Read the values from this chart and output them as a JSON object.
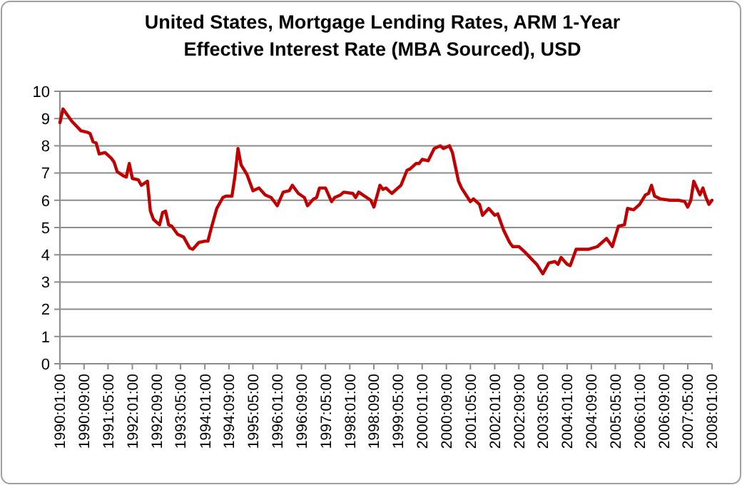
{
  "chart_data": {
    "type": "line",
    "title": "United States, Mortgage Lending Rates, ARM 1-Year Effective Interest Rate (MBA Sourced), USD",
    "x": [
      "1990-01",
      "1990-02",
      "1990-05",
      "1990-08",
      "1990-10",
      "1990-11",
      "1990-12",
      "1991-01",
      "1991-02",
      "1991-04",
      "1991-06",
      "1991-07",
      "1991-08",
      "1991-10",
      "1991-11",
      "1991-12",
      "1992-01",
      "1992-03",
      "1992-04",
      "1992-06",
      "1992-07",
      "1992-08",
      "1992-10",
      "1992-11",
      "1992-12",
      "1993-01",
      "1993-02",
      "1993-04",
      "1993-06",
      "1993-08",
      "1993-09",
      "1993-11",
      "1994-01",
      "1994-02",
      "1994-03",
      "1994-05",
      "1994-07",
      "1994-08",
      "1994-10",
      "1994-11",
      "1994-12",
      "1995-01",
      "1995-03",
      "1995-05",
      "1995-07",
      "1995-09",
      "1995-11",
      "1996-01",
      "1996-03",
      "1996-05",
      "1996-06",
      "1996-08",
      "1996-10",
      "1996-11",
      "1997-01",
      "1997-02",
      "1997-03",
      "1997-05",
      "1997-07",
      "1997-08",
      "1997-10",
      "1997-11",
      "1998-02",
      "1998-03",
      "1998-04",
      "1998-06",
      "1998-08",
      "1998-09",
      "1998-11",
      "1998-12",
      "1999-01",
      "1999-03",
      "1999-05",
      "1999-06",
      "1999-08",
      "1999-09",
      "1999-11",
      "1999-12",
      "2000-01",
      "2000-03",
      "2000-05",
      "2000-07",
      "2000-08",
      "2000-10",
      "2000-11",
      "2001-01",
      "2001-02",
      "2001-05",
      "2001-06",
      "2001-08",
      "2001-09",
      "2001-11",
      "2002-01",
      "2002-02",
      "2002-04",
      "2002-06",
      "2002-07",
      "2002-09",
      "2002-11",
      "2003-02",
      "2003-03",
      "2003-05",
      "2003-07",
      "2003-09",
      "2003-10",
      "2003-11",
      "2004-01",
      "2004-02",
      "2004-04",
      "2004-08",
      "2004-11",
      "2005-02",
      "2005-04",
      "2005-06",
      "2005-08",
      "2005-09",
      "2005-11",
      "2006-01",
      "2006-03",
      "2006-04",
      "2006-05",
      "2006-06",
      "2006-08",
      "2006-11",
      "2007-02",
      "2007-04",
      "2007-05",
      "2007-06",
      "2007-07",
      "2007-08",
      "2007-09",
      "2007-10",
      "2007-11",
      "2007-12",
      "2008-01"
    ],
    "series": [
      {
        "color": "#c00000",
        "values": [
          8.85,
          9.35,
          8.9,
          8.55,
          8.5,
          8.45,
          8.15,
          8.1,
          7.7,
          7.75,
          7.55,
          7.4,
          7.05,
          6.9,
          6.85,
          7.35,
          6.8,
          6.75,
          6.55,
          6.7,
          5.6,
          5.3,
          5.1,
          5.55,
          5.6,
          5.1,
          5.05,
          4.75,
          4.65,
          4.25,
          4.2,
          4.45,
          4.5,
          4.5,
          4.9,
          5.7,
          6.1,
          6.15,
          6.15,
          6.9,
          7.9,
          7.3,
          6.95,
          6.35,
          6.45,
          6.2,
          6.1,
          5.8,
          6.3,
          6.35,
          6.55,
          6.25,
          6.1,
          5.8,
          6.05,
          6.1,
          6.45,
          6.45,
          5.95,
          6.1,
          6.2,
          6.3,
          6.25,
          6.1,
          6.3,
          6.15,
          6.0,
          5.75,
          6.55,
          6.4,
          6.45,
          6.25,
          6.45,
          6.55,
          7.1,
          7.15,
          7.35,
          7.35,
          7.5,
          7.45,
          7.9,
          8.0,
          7.9,
          8.0,
          7.75,
          6.7,
          6.45,
          5.95,
          6.05,
          5.85,
          5.45,
          5.7,
          5.45,
          5.5,
          4.9,
          4.45,
          4.3,
          4.3,
          4.1,
          3.75,
          3.65,
          3.3,
          3.7,
          3.75,
          3.65,
          3.9,
          3.65,
          3.6,
          4.2,
          4.2,
          4.3,
          4.6,
          4.3,
          5.05,
          5.1,
          5.7,
          5.65,
          5.85,
          6.2,
          6.25,
          6.55,
          6.15,
          6.05,
          6.0,
          6.0,
          5.95,
          5.75,
          6.0,
          6.7,
          6.45,
          6.2,
          6.45,
          6.1,
          5.85,
          6.0
        ]
      }
    ],
    "xlim": [
      "1990-01",
      "2008-01"
    ],
    "xticks": [
      {
        "value": "1990-01",
        "label": "1990:01:00"
      },
      {
        "value": "1990-09",
        "label": "1990:09:00"
      },
      {
        "value": "1991-05",
        "label": "1991:05:00"
      },
      {
        "value": "1992-01",
        "label": "1992:01:00"
      },
      {
        "value": "1992-09",
        "label": "1992:09:00"
      },
      {
        "value": "1993-05",
        "label": "1993:05:00"
      },
      {
        "value": "1994-01",
        "label": "1994:01:00"
      },
      {
        "value": "1994-09",
        "label": "1994:09:00"
      },
      {
        "value": "1995-05",
        "label": "1995:05:00"
      },
      {
        "value": "1996-01",
        "label": "1996:01:00"
      },
      {
        "value": "1996-09",
        "label": "1996:09:00"
      },
      {
        "value": "1997-05",
        "label": "1997:05:00"
      },
      {
        "value": "1998-01",
        "label": "1998:01:00"
      },
      {
        "value": "1998-09",
        "label": "1998:09:00"
      },
      {
        "value": "1999-05",
        "label": "1999:05:00"
      },
      {
        "value": "2000-01",
        "label": "2000:01:00"
      },
      {
        "value": "2000-09",
        "label": "2000:09:00"
      },
      {
        "value": "2001-05",
        "label": "2001:05:00"
      },
      {
        "value": "2002-01",
        "label": "2002:01:00"
      },
      {
        "value": "2002-09",
        "label": "2002:09:00"
      },
      {
        "value": "2003-05",
        "label": "2003:05:00"
      },
      {
        "value": "2004-01",
        "label": "2004:01:00"
      },
      {
        "value": "2004-09",
        "label": "2004:09:00"
      },
      {
        "value": "2005-05",
        "label": "2005:05:00"
      },
      {
        "value": "2006-01",
        "label": "2006:01:00"
      },
      {
        "value": "2006-09",
        "label": "2006:09:00"
      },
      {
        "value": "2007-05",
        "label": "2007:05:00"
      },
      {
        "value": "2008-01",
        "label": "2008:01:00"
      }
    ],
    "ylim": [
      0,
      10
    ],
    "yticks": [
      0,
      1,
      2,
      3,
      4,
      5,
      6,
      7,
      8,
      9,
      10
    ],
    "grid": "y",
    "marker": "none",
    "line_style": "solid"
  }
}
